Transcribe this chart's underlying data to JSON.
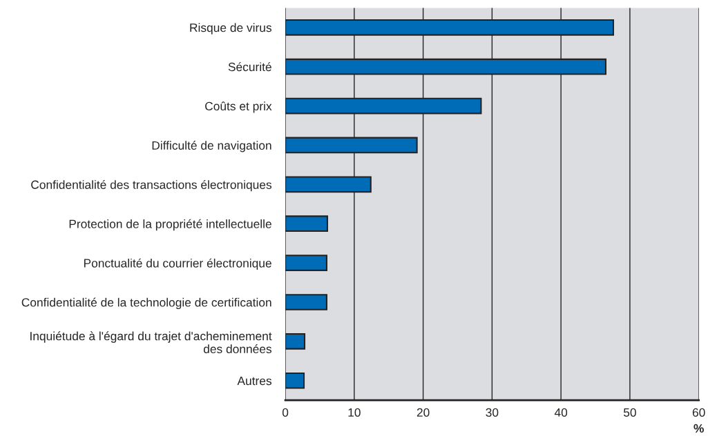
{
  "chart_data": {
    "type": "bar",
    "orientation": "horizontal",
    "categories": [
      "Risque de virus",
      "Sécurité",
      "Coûts et prix",
      "Difficulté de navigation",
      "Confidentialité des transactions électroniques",
      "Protection de la propriété intellectuelle",
      "Ponctualité du courrier électronique",
      "Confidentialité de la technologie de certification",
      "Inquiétude à l'égard du trajet d'acheminement\ndes données",
      "Autres"
    ],
    "values": [
      47.6,
      46.5,
      28.4,
      19.1,
      12.4,
      6.1,
      6.0,
      6.0,
      2.8,
      2.7
    ],
    "color": "#006bb6",
    "xlabel": "%",
    "xlim": [
      0,
      60
    ],
    "xticks": [
      0,
      10,
      20,
      30,
      40,
      50,
      60
    ],
    "grid": "x"
  }
}
